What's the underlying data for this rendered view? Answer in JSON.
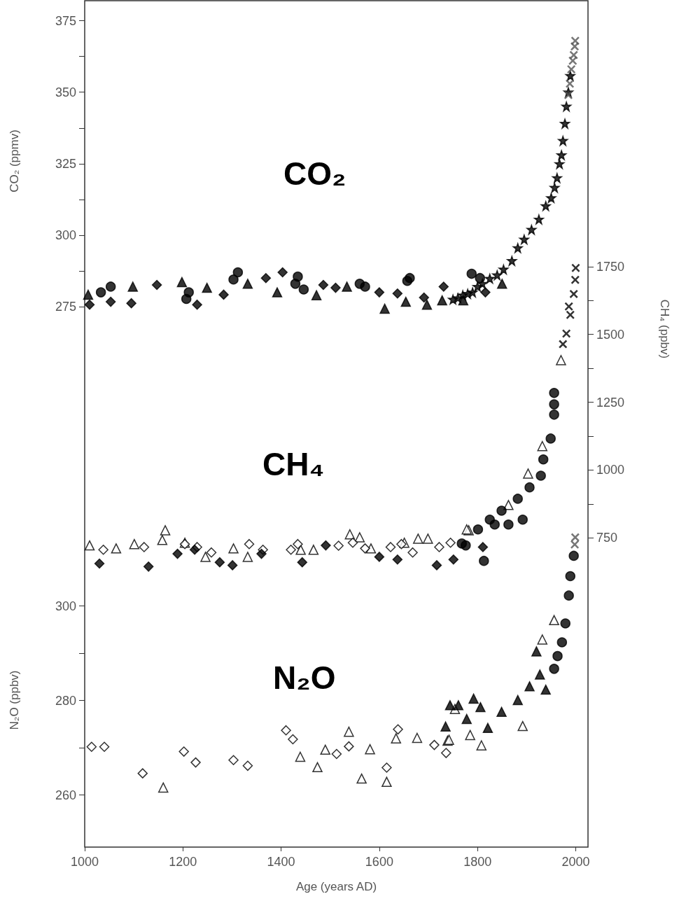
{
  "chart_data": {
    "type": "scatter",
    "xlabel": "Age (years AD)",
    "ylabel": "CO₂ (ppmv)",
    "y2label": "CH₄ (ppbv)",
    "y3label": "N₂O (ppbv)",
    "annotations": [
      "CO₂",
      "CH₄",
      "N₂O"
    ],
    "xlim": [
      1000,
      2025
    ],
    "xticks": [
      1000,
      1200,
      1400,
      1600,
      1800,
      2000
    ],
    "ylim": [
      86,
      382
    ],
    "yticks": [
      275,
      {
        "value": 287.5,
        "label": null
      },
      300,
      {
        "value": 312.5,
        "label": null
      },
      325,
      {
        "value": 337.5,
        "label": null
      },
      350,
      {
        "value": 362.5,
        "label": null
      },
      375
    ],
    "y2lim": [
      -390,
      2730
    ],
    "y2ticks": [
      750,
      {
        "value": 875,
        "label": null
      },
      1000,
      {
        "value": 1125,
        "label": null
      },
      1250,
      {
        "value": 1375,
        "label": null
      },
      1500,
      {
        "value": 1625,
        "label": null
      },
      1750
    ],
    "y3lim": [
      249,
      428
    ],
    "y3ticks": [
      260,
      {
        "value": 270,
        "label": null
      },
      280,
      {
        "value": 290,
        "label": null
      },
      300
    ],
    "series": [
      {
        "marker": "circle",
        "color": "#000000",
        "x": [
          1033,
          1053,
          1212,
          1207,
          1312,
          1303,
          1434,
          1429,
          1446,
          1560,
          1571,
          1662,
          1657,
          1788,
          1805
        ],
        "values": [
          280,
          282,
          280,
          277.7,
          287,
          284.5,
          285.5,
          283,
          281,
          283,
          282,
          285,
          284,
          286.5,
          285
        ]
      },
      {
        "marker": "diamond",
        "color": "#000000",
        "x": [
          1010,
          1053,
          1095,
          1147,
          1229,
          1283,
          1369,
          1403,
          1486,
          1511,
          1600,
          1637,
          1731,
          1691,
          1816
        ],
        "values": [
          275.7,
          276.7,
          276.2,
          282.6,
          275.7,
          279.2,
          285,
          287,
          282.6,
          281.6,
          280,
          279.6,
          282,
          278.2,
          280
        ]
      },
      {
        "marker": "triangle",
        "color": "#000000",
        "x": [
          1007,
          1098,
          1198,
          1249,
          1332,
          1392,
          1472,
          1534,
          1611,
          1654,
          1697,
          1728,
          1771,
          1850
        ],
        "values": [
          279.2,
          282,
          283.6,
          281.6,
          283,
          280,
          279,
          282,
          274.3,
          276.7,
          275.7,
          277.2,
          277.2,
          283
        ]
      },
      {
        "marker": "star",
        "color": "#000000",
        "x": [
          1750,
          1760,
          1770,
          1780,
          1790,
          1800,
          1810,
          1825,
          1840,
          1853,
          1870,
          1882,
          1895,
          1910,
          1925,
          1939,
          1950,
          1957,
          1962,
          1967,
          1971,
          1974,
          1978,
          1981,
          1985,
          1989
        ],
        "values": [
          277.5,
          278,
          279,
          279.5,
          280,
          282,
          283,
          284.8,
          286,
          288,
          291,
          295.5,
          298.5,
          301.9,
          305.5,
          310.2,
          313,
          316.6,
          320,
          324.9,
          328,
          333,
          339,
          345,
          350,
          355.7
        ]
      },
      {
        "marker": "cross",
        "color": "#555555",
        "x": [
          1985,
          1988,
          1991,
          1994,
          1996,
          1998,
          1999
        ],
        "values": [
          349,
          353,
          358,
          361,
          363,
          366,
          368
        ]
      },
      {
        "axis": "y2",
        "marker": "triangle",
        "color": "#ffffff",
        "x": [
          1010,
          1064,
          1101,
          1164,
          1158,
          1204,
          1246,
          1303,
          1332,
          1440,
          1466,
          1540,
          1560,
          1583,
          1651,
          1679,
          1699,
          1782,
          1778,
          1863,
          1903,
          1932,
          1970
        ],
        "values": [
          722,
          711,
          727,
          778,
          742,
          732,
          680,
          711,
          680,
          706,
          706,
          763,
          752,
          711,
          732,
          747,
          747,
          778,
          781,
          871,
          987,
          1088,
          1405
        ]
      },
      {
        "axis": "y2",
        "marker": "diamond",
        "color": "#ffffff",
        "x": [
          1038,
          1121,
          1204,
          1229,
          1258,
          1335,
          1363,
          1420,
          1434,
          1517,
          1546,
          1571,
          1623,
          1645,
          1668,
          1722,
          1745
        ],
        "values": [
          706,
          716,
          727,
          716,
          696,
          727,
          706,
          706,
          727,
          721,
          732,
          711,
          716,
          727,
          696,
          716,
          732
        ]
      },
      {
        "axis": "y2",
        "marker": "diamond",
        "color": "#000000",
        "x": [
          1030,
          1130,
          1189,
          1224,
          1275,
          1301,
          1360,
          1443,
          1491,
          1600,
          1637,
          1717,
          1751,
          1811
        ],
        "values": [
          655,
          644,
          691,
          706,
          660,
          649,
          691,
          660,
          722,
          680,
          670,
          649,
          670,
          716
        ]
      },
      {
        "axis": "y2",
        "marker": "circle",
        "color": "#000000",
        "x": [
          1813,
          1776,
          1768,
          1801,
          1825,
          1835,
          1849,
          1863,
          1882,
          1892,
          1906,
          1929,
          1934,
          1949,
          1956,
          1956,
          1956
        ],
        "values": [
          665,
          722,
          729,
          781,
          817,
          799,
          850,
          799,
          894,
          817,
          936,
          979,
          1039,
          1116,
          1204,
          1242,
          1284
        ]
      },
      {
        "axis": "y2",
        "marker": "cross",
        "color": "#000000",
        "x": [
          1974,
          1981,
          1986,
          1989,
          1996,
          1999,
          2000
        ],
        "values": [
          1464,
          1503,
          1603,
          1572,
          1649,
          1701,
          1745
        ]
      },
      {
        "axis": "y3",
        "marker": "diamond",
        "color": "#ffffff",
        "x": [
          1014,
          1040,
          1118,
          1202,
          1226,
          1303,
          1332,
          1410,
          1424,
          1513,
          1538,
          1615,
          1638,
          1712,
          1736
        ],
        "values": [
          270.2,
          270.2,
          264.6,
          269.2,
          266.9,
          267.4,
          266.2,
          273.7,
          271.8,
          268.7,
          270.3,
          265.8,
          273.9,
          270.6,
          268.9
        ]
      },
      {
        "axis": "y3",
        "marker": "triangle",
        "color": "#ffffff",
        "x": [
          1160,
          1439,
          1474,
          1490,
          1538,
          1564,
          1581,
          1615,
          1634,
          1677,
          1739,
          1742,
          1754,
          1785,
          1808,
          1892,
          1932,
          1956
        ],
        "values": [
          261.6,
          268.1,
          265.9,
          269.6,
          273.4,
          263.5,
          269.7,
          262.8,
          272,
          272.1,
          271.5,
          271.7,
          278.2,
          272.7,
          270.5,
          274.6,
          292.9,
          297
        ]
      },
      {
        "axis": "y3",
        "marker": "triangle",
        "color": "#000000",
        "x": [
          1744,
          1761,
          1792,
          1806,
          1735,
          1778,
          1821,
          1849,
          1882,
          1906,
          1927,
          1939,
          1920
        ],
        "values": [
          279,
          279,
          280.4,
          278.6,
          274.5,
          276.1,
          274.2,
          277.6,
          280.1,
          283,
          285.5,
          282.3,
          290.4
        ]
      },
      {
        "axis": "y3",
        "marker": "circle",
        "color": "#000000",
        "x": [
          1956,
          1963,
          1972,
          1979,
          1986,
          1989,
          1996
        ],
        "values": [
          286.7,
          289.4,
          292.3,
          296.3,
          302.2,
          306.3,
          310.6
        ]
      },
      {
        "axis": "y3",
        "marker": "cross",
        "color": "#555555",
        "x": [
          1998,
          1999
        ],
        "values": [
          313,
          314.5
        ]
      }
    ]
  }
}
